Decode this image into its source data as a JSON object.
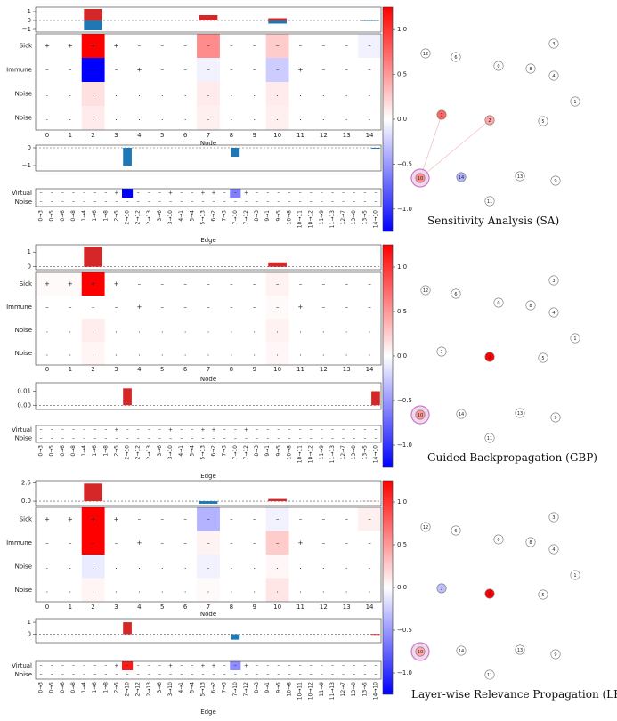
{
  "chart_data": {
    "type": "heatmap",
    "rows": [
      "Sick",
      "Immune",
      "Noise",
      "Noise"
    ],
    "nodes": [
      "0",
      "1",
      "2",
      "3",
      "4",
      "5",
      "6",
      "7",
      "8",
      "9",
      "10",
      "11",
      "12",
      "13",
      "14"
    ],
    "node_xlabel": "Node",
    "edge_xlabel": "Edge",
    "edge_rows": [
      "Virtual",
      "Noise"
    ],
    "edges": [
      "0→3",
      "0→5",
      "0→6",
      "0→8",
      "1→4",
      "1→6",
      "1→8",
      "2→5",
      "2→10",
      "2→12",
      "2→13",
      "3→6",
      "3→10",
      "4→1",
      "5→4",
      "5→13",
      "6→2",
      "7→3",
      "7→10",
      "7→12",
      "8→3",
      "9→1",
      "9→5",
      "10→8",
      "10→11",
      "10→12",
      "11→9",
      "11→13",
      "12→7",
      "13→0",
      "13→5",
      "14→10"
    ],
    "edge_signs": {
      "virtual": [
        "–",
        "–",
        "–",
        "–",
        "–",
        "–",
        "–",
        "+",
        "–",
        "–",
        "–",
        "–",
        "+",
        "–",
        "–",
        "+",
        "+",
        "–",
        "–",
        "+",
        "–",
        "–",
        "–",
        "–",
        "–",
        "–",
        "–",
        "–",
        "–",
        "–",
        "–",
        "–"
      ],
      "noise": [
        "–",
        "–",
        "–",
        "–",
        "–",
        "–",
        "–",
        "–",
        "–",
        "–",
        "–",
        "–",
        "–",
        "–",
        "–",
        "–",
        "–",
        "–",
        "–",
        "–",
        "–",
        "–",
        "–",
        "–",
        "–",
        "–",
        "–",
        "–",
        "–",
        "–",
        "–",
        "–"
      ]
    },
    "feature_signs": {
      "sick": [
        "+",
        "+",
        "+",
        "+",
        "–",
        "–",
        "–",
        "–",
        "–",
        "–",
        "–",
        "–",
        "–",
        "–",
        "–"
      ],
      "immune": [
        "–",
        "–",
        "–",
        "–",
        "+",
        "–",
        "–",
        "–",
        "–",
        "–",
        "–",
        "+",
        "–",
        "–",
        "–"
      ],
      "noise1": [
        ".",
        ".",
        ".",
        ".",
        ".",
        ".",
        ".",
        ".",
        ".",
        ".",
        ".",
        ".",
        ".",
        ".",
        "."
      ],
      "noise2": [
        ".",
        ".",
        ".",
        ".",
        ".",
        ".",
        ".",
        ".",
        ".",
        ".",
        ".",
        ".",
        ".",
        ".",
        "."
      ]
    },
    "colorbar": {
      "range": [
        -1.25,
        1.25
      ],
      "ticks": [
        1.0,
        0.5,
        0.0,
        -0.5,
        -1.0
      ],
      "tick_labels": [
        "1.0",
        "0.5",
        "0.0",
        "−0.5",
        "−1.0"
      ],
      "low_color": "#0000ff",
      "high_color": "#ff0000"
    },
    "panels": [
      {
        "method": "Sensitivity Analysis (SA)",
        "node_bar": {
          "ylim": [
            -1.3,
            1.5
          ],
          "yticks": [
            1,
            0,
            -1
          ],
          "ytick_labels": [
            "1",
            "0",
            "−1"
          ],
          "pos": [
            0,
            0,
            1.3,
            0,
            0,
            0,
            0,
            0.6,
            0,
            0,
            0.25,
            0,
            0,
            0,
            0
          ],
          "neg": [
            0,
            0,
            -1.1,
            0,
            0,
            0,
            0,
            0,
            0,
            0,
            -0.35,
            0,
            0,
            0,
            -0.05
          ]
        },
        "heat": [
          [
            0,
            0,
            1.0,
            0,
            0,
            0,
            0,
            0.45,
            0,
            0,
            0.2,
            0,
            0,
            0,
            -0.05
          ],
          [
            0,
            0,
            -1.0,
            0,
            0,
            0,
            0,
            -0.05,
            0,
            0,
            -0.2,
            0,
            0,
            0,
            0
          ],
          [
            0,
            0,
            0.12,
            0,
            0,
            0,
            0,
            0.08,
            0,
            0,
            0.08,
            0,
            0,
            0,
            0
          ],
          [
            0,
            0,
            0.08,
            0,
            0,
            0,
            0,
            0.06,
            0,
            0,
            0.06,
            0,
            0,
            0,
            0
          ]
        ],
        "edge_bar": {
          "ylim": [
            -1.3,
            0.15
          ],
          "yticks": [
            0,
            -1
          ],
          "ytick_labels": [
            "0",
            "−1"
          ],
          "values": [
            0,
            0,
            0,
            0,
            0,
            0,
            0,
            0,
            -1.0,
            0,
            0,
            0,
            0,
            0,
            0,
            0,
            0,
            0,
            -0.5,
            0,
            0,
            0,
            0,
            0,
            0,
            0,
            0,
            0,
            0,
            0,
            0,
            -0.04
          ]
        },
        "edge_heat": [
          [
            0,
            0,
            0,
            0,
            0,
            0,
            0,
            0,
            -1.0,
            0,
            0,
            0,
            0,
            0,
            0,
            0,
            0,
            0,
            -0.5,
            0,
            0,
            0,
            0,
            0,
            0,
            0,
            0,
            0,
            0,
            0,
            0,
            0
          ],
          [
            0,
            0,
            0,
            0,
            0,
            0,
            0,
            0,
            0,
            0,
            0,
            0,
            0,
            0,
            0,
            0,
            0,
            0,
            0,
            0,
            0,
            0,
            0,
            0,
            0,
            0,
            0,
            0,
            0,
            0,
            0,
            0
          ]
        ],
        "graph_colors": {
          "7": 0.6,
          "2": 0.35,
          "10": 0.45,
          "14": -0.3
        },
        "graph_links": [
          [
            "10",
            "2"
          ],
          [
            "10",
            "7"
          ]
        ]
      },
      {
        "method": "Guided Backpropagation (GBP)",
        "node_bar": {
          "ylim": [
            -0.2,
            1.5
          ],
          "yticks": [
            1,
            0
          ],
          "ytick_labels": [
            "1",
            "0"
          ],
          "pos": [
            0,
            0,
            1.35,
            0,
            0,
            0,
            0,
            0,
            0,
            0,
            0.3,
            0,
            0,
            0,
            0
          ],
          "neg": [
            0,
            0,
            0,
            0,
            0,
            0,
            0,
            0,
            0,
            0,
            0,
            0,
            0,
            0,
            0
          ]
        },
        "heat": [
          [
            0.02,
            0.02,
            1.0,
            0,
            0,
            0,
            0,
            0,
            0,
            0,
            0.05,
            0,
            0,
            0,
            0
          ],
          [
            0,
            0,
            0,
            0,
            0,
            0,
            0,
            0,
            0,
            0,
            0.02,
            0,
            0,
            0,
            0
          ],
          [
            0,
            0,
            0.07,
            0,
            0,
            0,
            0,
            0,
            0,
            0,
            0.05,
            0,
            0,
            0,
            0
          ],
          [
            0,
            0,
            0.04,
            0,
            0,
            0,
            0,
            0,
            0,
            0,
            0.03,
            0,
            0,
            0,
            0
          ]
        ],
        "edge_bar": {
          "ylim": [
            -0.003,
            0.016
          ],
          "yticks": [
            0.01,
            0.0
          ],
          "ytick_labels": [
            "0.01",
            "0.00"
          ],
          "values": [
            0,
            0,
            0,
            0,
            0,
            0,
            0,
            0,
            0.012,
            0,
            0,
            0,
            0,
            0,
            0,
            0,
            0,
            0,
            0,
            0,
            0,
            0,
            0,
            0,
            0,
            0,
            0,
            0,
            0,
            0,
            0,
            0.01
          ]
        },
        "edge_heat": [
          [
            0,
            0,
            0,
            0,
            0,
            0,
            0,
            0,
            0,
            0,
            0,
            0,
            0,
            0,
            0,
            0,
            0,
            0,
            0,
            0,
            0,
            0,
            0,
            0,
            0,
            0,
            0,
            0,
            0,
            0,
            0,
            0
          ],
          [
            0,
            0,
            0,
            0,
            0,
            0,
            0,
            0,
            0,
            0,
            0,
            0,
            0,
            0,
            0,
            0,
            0,
            0,
            0,
            0,
            0,
            0,
            0,
            0,
            0,
            0,
            0,
            0,
            0,
            0,
            0,
            0
          ]
        ],
        "graph_colors": {
          "2": 1.0,
          "10": 0.4
        },
        "graph_links": []
      },
      {
        "method": "Layer-wise Relevance Propagation (LRP)",
        "node_bar": {
          "ylim": [
            -0.6,
            2.8
          ],
          "yticks": [
            2.5,
            0.0
          ],
          "ytick_labels": [
            "2.5",
            "0.0"
          ],
          "pos": [
            0,
            0,
            2.4,
            0,
            0,
            0,
            0,
            0,
            0,
            0,
            0.3,
            0,
            0,
            0,
            0.02
          ],
          "neg": [
            0,
            0,
            0,
            0,
            0,
            0,
            0,
            -0.35,
            0,
            0,
            0,
            0,
            0,
            0,
            0
          ]
        },
        "heat": [
          [
            0,
            0,
            1.0,
            0,
            0,
            0,
            0,
            -0.3,
            0,
            0,
            -0.05,
            0,
            0,
            0,
            0.06
          ],
          [
            0,
            0,
            1.0,
            0,
            0,
            0,
            0,
            0.05,
            0,
            0,
            0.2,
            0,
            0,
            0,
            0
          ],
          [
            0,
            0,
            -0.08,
            0,
            0,
            0,
            0,
            -0.05,
            0,
            0,
            0.03,
            0,
            0,
            0,
            0
          ],
          [
            0,
            0,
            0.04,
            0,
            0,
            0,
            0,
            0.02,
            0,
            0,
            0.1,
            0,
            0,
            0,
            0
          ]
        ],
        "edge_bar": {
          "ylim": [
            -0.7,
            1.3
          ],
          "yticks": [
            1,
            0
          ],
          "ytick_labels": [
            "1",
            "0"
          ],
          "values": [
            0,
            0,
            0,
            0,
            0,
            0,
            0,
            0,
            1.0,
            0,
            0,
            0,
            0,
            0,
            0,
            0,
            0,
            0,
            -0.45,
            0,
            0,
            0,
            0,
            0,
            0,
            0,
            0,
            0,
            0,
            0,
            0,
            0.02
          ]
        },
        "edge_heat": [
          [
            0,
            0,
            0,
            0,
            0,
            0,
            0,
            0,
            0.9,
            0,
            0,
            0,
            0,
            0,
            0,
            0,
            0,
            0,
            -0.45,
            0,
            0,
            0,
            0,
            0,
            0,
            0,
            0,
            0,
            0,
            0,
            0,
            0
          ],
          [
            0,
            0,
            0,
            0,
            0,
            0,
            0,
            0,
            0,
            0,
            0,
            0,
            0,
            0,
            0,
            0,
            0,
            0,
            0,
            0,
            0,
            0,
            0,
            0,
            0,
            0,
            0,
            0,
            0,
            0,
            0,
            0
          ]
        ],
        "graph_colors": {
          "2": 1.0,
          "7": -0.25,
          "10": 0.35
        },
        "graph_links": []
      }
    ]
  }
}
